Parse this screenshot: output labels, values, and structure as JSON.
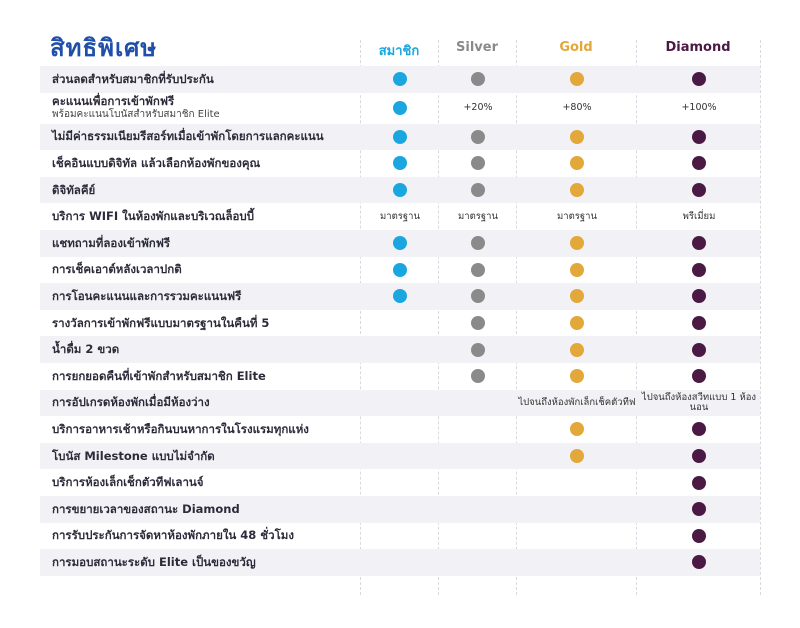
{
  "title": "สิทธิพิเศษ",
  "tiers": [
    {
      "name": "สมาชิก",
      "color": "#1aa7e0"
    },
    {
      "name": "Silver",
      "color": "#8a8a8a"
    },
    {
      "name": "Gold",
      "color": "#e2a83a"
    },
    {
      "name": "Diamond",
      "color": "#4a1a45"
    }
  ],
  "rows": [
    {
      "label": "ส่วนลดสำหรับสมาชิกที่รับประกัน",
      "sub": "",
      "cells": [
        "dot",
        "dot",
        "dot",
        "dot"
      ]
    },
    {
      "label": "คะแนนเพื่อการเข้าพักฟรี",
      "sub": "พร้อมคะแนนโบนัสสำหรับสมาชิก Elite",
      "cells": [
        "dot",
        "+20%",
        "+80%",
        "+100%"
      ]
    },
    {
      "label": "ไม่มีค่าธรรมเนียมรีสอร์ทเมื่อเข้าพักโดยการแลกคะแนน",
      "sub": "",
      "cells": [
        "dot",
        "dot",
        "dot",
        "dot"
      ]
    },
    {
      "label": "เช็คอินแบบดิจิทัล แล้วเลือกห้องพักของคุณ",
      "sub": "",
      "cells": [
        "dot",
        "dot",
        "dot",
        "dot"
      ]
    },
    {
      "label": "ดิจิทัลคีย์",
      "sub": "",
      "cells": [
        "dot",
        "dot",
        "dot",
        "dot"
      ]
    },
    {
      "label": "บริการ WIFI ในห้องพักและบริเวณล็อบบี้",
      "sub": "",
      "cells": [
        "มาตรฐาน",
        "มาตรฐาน",
        "มาตรฐาน",
        "พรีเมี่ยม"
      ]
    },
    {
      "label": "แชทถามที่ลองเข้าพักฟรี",
      "sub": "",
      "cells": [
        "dot",
        "dot",
        "dot",
        "dot"
      ]
    },
    {
      "label": "การเช็คเอาต์หลังเวลาปกติ",
      "sub": "",
      "cells": [
        "dot",
        "dot",
        "dot",
        "dot"
      ]
    },
    {
      "label": "การโอนคะแนนและการรวมคะแนนฟรี",
      "sub": "",
      "cells": [
        "dot",
        "dot",
        "dot",
        "dot"
      ]
    },
    {
      "label": "รางวัลการเข้าพักฟรีแบบมาตรฐานในคืนที่ 5",
      "sub": "",
      "cells": [
        "",
        "dot",
        "dot",
        "dot"
      ]
    },
    {
      "label": "น้ำดื่ม 2 ขวด",
      "sub": "",
      "cells": [
        "",
        "dot",
        "dot",
        "dot"
      ]
    },
    {
      "label": "การยกยอดคืนที่เข้าพักสำหรับสมาชิก Elite",
      "sub": "",
      "cells": [
        "",
        "dot",
        "dot",
        "dot"
      ]
    },
    {
      "label": "การอัปเกรดห้องพักเมื่อมีห้องว่าง",
      "sub": "",
      "cells": [
        "",
        "",
        "ไปจนถึงห้องพักเล็กเช็คตัวทีฟ",
        "ไปจนถึงห้องสวีทแบบ 1 ห้องนอน"
      ]
    },
    {
      "label": "บริการอาหารเช้าหรือกินบนหาการในโรงแรมทุกแห่ง",
      "sub": "",
      "cells": [
        "",
        "",
        "dot",
        "dot"
      ]
    },
    {
      "label": "โบนัส Milestone แบบไม่จำกัด",
      "sub": "",
      "cells": [
        "",
        "",
        "dot",
        "dot"
      ]
    },
    {
      "label": "บริการห้องเล็กเช็กตัวทีฟเลานจ์",
      "sub": "",
      "cells": [
        "",
        "",
        "",
        "dot"
      ]
    },
    {
      "label": "การขยายเวลาของสถานะ Diamond",
      "sub": "",
      "cells": [
        "",
        "",
        "",
        "dot"
      ]
    },
    {
      "label": "การรับประกันการจัดหาห้องพักภายใน 48 ชั่วโมง",
      "sub": "",
      "cells": [
        "",
        "",
        "",
        "dot"
      ]
    },
    {
      "label": "การมอบสถานะระดับ Elite เป็นของขวัญ",
      "sub": "",
      "cells": [
        "",
        "",
        "",
        "dot"
      ]
    }
  ]
}
